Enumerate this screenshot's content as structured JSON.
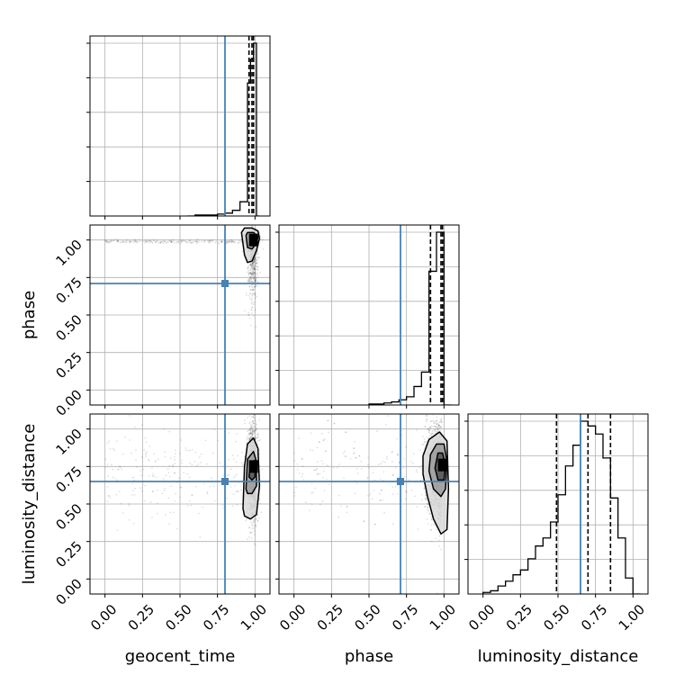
{
  "chart_data": {
    "type": "corner",
    "parameters": [
      "geocent_time",
      "phase",
      "luminosity_distance"
    ],
    "axis_labels": {
      "geocent_time": "geocent_time",
      "phase": "phase",
      "luminosity_distance": "luminosity_distance"
    },
    "ticks": {
      "values": [
        0.0,
        0.25,
        0.5,
        0.75,
        1.0
      ],
      "labels": [
        "0.00",
        "0.25",
        "0.50",
        "0.75",
        "1.00"
      ]
    },
    "xlim": [
      -0.1,
      1.1
    ],
    "ylim": [
      -0.1,
      1.1
    ],
    "grid": true,
    "truths": {
      "geocent_time": 0.8,
      "phase": 0.71,
      "luminosity_distance": 0.65
    },
    "truth_color": "#4682b4",
    "histograms": [
      {
        "parameter": "geocent_time",
        "bin_edges": [
          0.55,
          0.6,
          0.65,
          0.7,
          0.75,
          0.8,
          0.85,
          0.9,
          0.95,
          0.97,
          0.99,
          1.01,
          1.03
        ],
        "counts": [
          0,
          1,
          1,
          1,
          2,
          3,
          6,
          15,
          140,
          165,
          182,
          0
        ],
        "quantiles": [
          0.96,
          0.98,
          0.99
        ]
      },
      {
        "parameter": "phase",
        "bin_edges": [
          0.5,
          0.55,
          0.6,
          0.65,
          0.7,
          0.75,
          0.8,
          0.85,
          0.9,
          0.95,
          1.0,
          1.05
        ],
        "counts": [
          1,
          1,
          2,
          3,
          5,
          8,
          18,
          32,
          130,
          168,
          0
        ],
        "quantiles": [
          0.91,
          0.98,
          0.99
        ]
      },
      {
        "parameter": "luminosity_distance",
        "bin_edges": [
          0.0,
          0.05,
          0.1,
          0.15,
          0.2,
          0.25,
          0.3,
          0.35,
          0.4,
          0.45,
          0.5,
          0.55,
          0.6,
          0.65,
          0.7,
          0.75,
          0.8,
          0.85,
          0.9,
          0.95,
          1.0,
          1.05
        ],
        "counts": [
          1,
          2,
          5,
          8,
          12,
          15,
          22,
          30,
          35,
          45,
          62,
          80,
          93,
          108,
          105,
          100,
          85,
          60,
          35,
          10,
          0
        ],
        "quantiles": [
          0.49,
          0.7,
          0.85
        ]
      }
    ],
    "scatter_panels": [
      {
        "x": "geocent_time",
        "y": "phase",
        "contours": [
          {
            "level": 0.9,
            "points": [
              [
                0.91,
                1.05
              ],
              [
                0.93,
                0.9
              ],
              [
                0.95,
                0.85
              ],
              [
                0.98,
                0.86
              ],
              [
                1.01,
                0.93
              ],
              [
                1.03,
                1.01
              ],
              [
                1.02,
                1.06
              ],
              [
                0.98,
                1.08
              ],
              [
                0.93,
                1.08
              ]
            ]
          },
          {
            "level": 0.6,
            "points": [
              [
                0.94,
                1.03
              ],
              [
                0.95,
                0.95
              ],
              [
                0.98,
                0.94
              ],
              [
                1.01,
                0.98
              ],
              [
                1.02,
                1.02
              ],
              [
                0.99,
                1.05
              ],
              [
                0.95,
                1.05
              ]
            ]
          }
        ],
        "density_core": {
          "x": 0.99,
          "y": 1.0
        }
      },
      {
        "x": "geocent_time",
        "y": "luminosity_distance",
        "contours": [
          {
            "level": 0.9,
            "points": [
              [
                0.92,
                0.47
              ],
              [
                0.93,
                0.75
              ],
              [
                0.95,
                0.9
              ],
              [
                0.99,
                0.94
              ],
              [
                1.02,
                0.87
              ],
              [
                1.03,
                0.62
              ],
              [
                1.01,
                0.43
              ],
              [
                0.97,
                0.4
              ],
              [
                0.93,
                0.42
              ]
            ]
          },
          {
            "level": 0.6,
            "points": [
              [
                0.94,
                0.6
              ],
              [
                0.95,
                0.8
              ],
              [
                0.99,
                0.85
              ],
              [
                1.01,
                0.78
              ],
              [
                1.01,
                0.62
              ],
              [
                0.98,
                0.57
              ],
              [
                0.95,
                0.57
              ]
            ]
          },
          {
            "level": 0.3,
            "points": [
              [
                0.96,
                0.68
              ],
              [
                0.97,
                0.78
              ],
              [
                1.0,
                0.79
              ],
              [
                1.0,
                0.68
              ],
              [
                0.98,
                0.66
              ]
            ]
          }
        ],
        "density_core": {
          "x": 0.99,
          "y": 0.75
        }
      },
      {
        "x": "phase",
        "y": "luminosity_distance",
        "contours": [
          {
            "level": 0.9,
            "points": [
              [
                0.86,
                0.7
              ],
              [
                0.89,
                0.55
              ],
              [
                0.93,
                0.4
              ],
              [
                0.98,
                0.3
              ],
              [
                1.02,
                0.33
              ],
              [
                1.03,
                0.6
              ],
              [
                1.02,
                0.92
              ],
              [
                0.97,
                0.98
              ],
              [
                0.9,
                0.93
              ],
              [
                0.86,
                0.82
              ]
            ]
          },
          {
            "level": 0.6,
            "points": [
              [
                0.9,
                0.72
              ],
              [
                0.93,
                0.6
              ],
              [
                0.98,
                0.55
              ],
              [
                1.01,
                0.6
              ],
              [
                1.02,
                0.78
              ],
              [
                1.0,
                0.9
              ],
              [
                0.95,
                0.9
              ],
              [
                0.91,
                0.83
              ]
            ]
          },
          {
            "level": 0.3,
            "points": [
              [
                0.94,
                0.74
              ],
              [
                0.96,
                0.66
              ],
              [
                1.0,
                0.66
              ],
              [
                1.01,
                0.76
              ],
              [
                0.99,
                0.84
              ],
              [
                0.96,
                0.84
              ]
            ]
          }
        ],
        "density_core": {
          "x": 0.99,
          "y": 0.76
        }
      }
    ]
  }
}
